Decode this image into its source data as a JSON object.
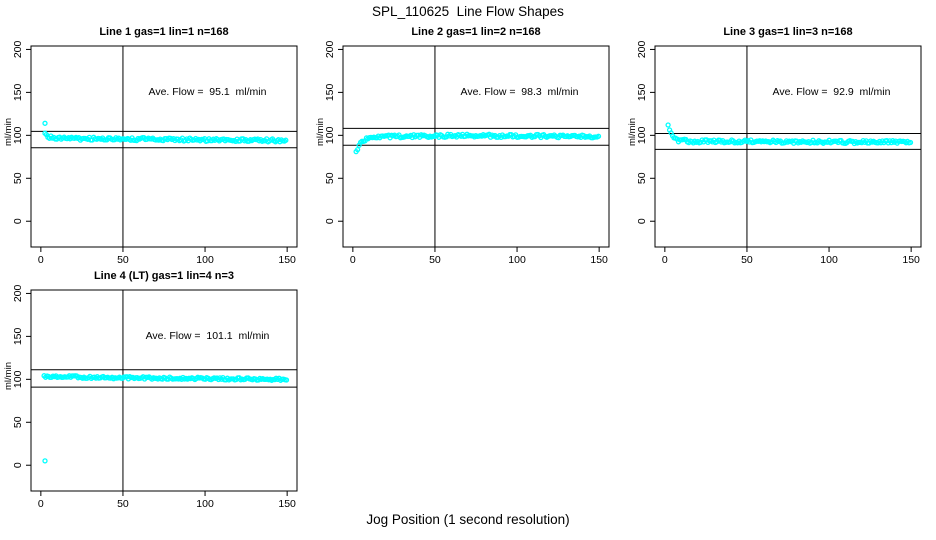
{
  "figure": {
    "title": "SPL_110625  Line Flow Shapes",
    "xlabel": "Jog Position (1 second resolution)",
    "ylabel": "ml/min",
    "background": "#FFFFFF",
    "point_color": "#00FFFF",
    "line_color": "#000000"
  },
  "axes": {
    "x_ticks": [
      0,
      50,
      100,
      150
    ],
    "y_ticks": [
      0,
      50,
      100,
      150,
      200
    ],
    "xlim": [
      -6,
      156
    ],
    "ylim": [
      -30,
      204
    ],
    "grid": false,
    "box": true
  },
  "chart_data": [
    {
      "type": "scatter",
      "title": "Line 1 gas=1 lin=1 n=168",
      "annotation": "Ave. Flow =  95.1  ml/min",
      "ave_flow_ml_min": 95.1,
      "n": 168,
      "ref_lines_y": [
        104.6,
        85.6
      ],
      "ref_line_x": 50,
      "profile": [
        [
          2.5,
          103
        ],
        [
          4,
          98
        ],
        [
          10,
          96.5
        ],
        [
          60,
          95.5
        ],
        [
          150,
          94
        ]
      ],
      "outliers": [
        [
          2.5,
          114
        ]
      ],
      "jitter": 1.8
    },
    {
      "type": "scatter",
      "title": "Line 2 gas=1 lin=2 n=168",
      "annotation": "Ave. Flow =  98.3  ml/min",
      "ave_flow_ml_min": 98.3,
      "n": 168,
      "ref_lines_y": [
        108.1,
        88.5
      ],
      "ref_line_x": 50,
      "profile": [
        [
          2,
          80
        ],
        [
          3.5,
          87
        ],
        [
          5,
          92
        ],
        [
          8,
          96
        ],
        [
          15,
          98.5
        ],
        [
          60,
          99.5
        ],
        [
          150,
          99
        ]
      ],
      "outliers": [],
      "jitter": 1.8
    },
    {
      "type": "scatter",
      "title": "Line 3 gas=1 lin=3 n=168",
      "annotation": "Ave. Flow =  92.9  ml/min",
      "ave_flow_ml_min": 92.9,
      "n": 168,
      "ref_lines_y": [
        102.2,
        83.6
      ],
      "ref_line_x": 50,
      "profile": [
        [
          2,
          111
        ],
        [
          3,
          105
        ],
        [
          4.5,
          99
        ],
        [
          7,
          94.5
        ],
        [
          15,
          93
        ],
        [
          60,
          92.8
        ],
        [
          150,
          92
        ]
      ],
      "outliers": [],
      "jitter": 1.8
    },
    {
      "type": "scatter",
      "title": "Line 4 (LT) gas=1 lin=4 n=3",
      "annotation": "Ave. Flow =  101.1  ml/min",
      "ave_flow_ml_min": 101.1,
      "n": 3,
      "ref_lines_y": [
        111.2,
        91.0
      ],
      "ref_line_x": 50,
      "profile": [
        [
          2,
          103.5
        ],
        [
          40,
          102
        ],
        [
          150,
          100
        ]
      ],
      "outliers": [
        [
          2.5,
          5
        ]
      ],
      "jitter": 1.4
    }
  ]
}
